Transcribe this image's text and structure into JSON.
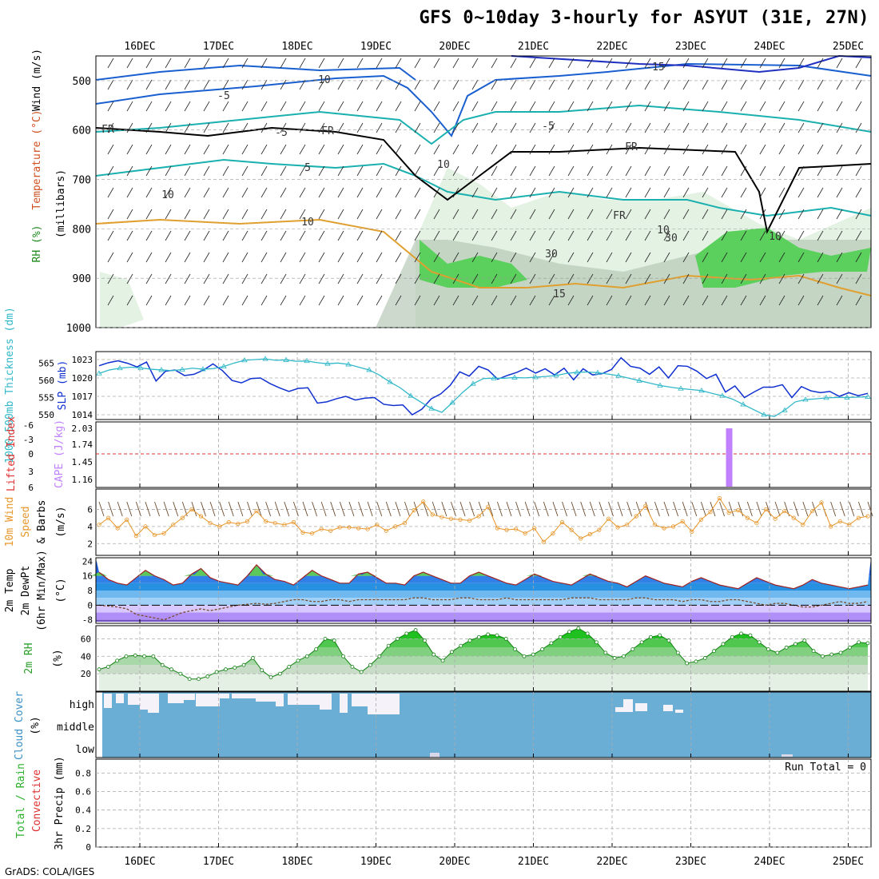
{
  "title": "GFS 0~10day 3-hourly for ASYUT (31E, 27N)",
  "footer": "GrADS: COLA/IGES",
  "run_total": "Run Total = 0",
  "colors": {
    "wind_contour": "#1a5fd0",
    "temp_contour": "#1ab0b0",
    "rh_fill_light": "#e3f2e3",
    "rh_fill_mid": "#b7c9b7",
    "rh_fill_green": "#5cd05c",
    "slp_line": "#1030d0",
    "thickness_line": "#30b8c8",
    "cape_bar": "#c080ff",
    "li_line": "#e03030",
    "wind10_speed": "#e8962a",
    "cloud_fill": "#6aaed6",
    "rh2m_fill": "#39c639"
  },
  "chart_data": [
    {
      "id": "upper_air",
      "type": "heatmap",
      "x_ticks": [
        "16DEC",
        "17DEC",
        "18DEC",
        "19DEC",
        "20DEC",
        "21DEC",
        "22DEC",
        "23DEC",
        "24DEC",
        "25DEC"
      ],
      "ylabel_parts": [
        "RH (%)",
        "Temperature (°C)",
        "Wind (m/s)",
        "(millibars)"
      ],
      "y_ticks": [
        500,
        600,
        700,
        800,
        900,
        1000
      ],
      "ylim": [
        450,
        1000
      ],
      "contour_labels": [
        "-15",
        "-10",
        "-5",
        "-5",
        "-5",
        "5",
        "FR",
        "FR",
        "FR",
        "FR",
        "10",
        "10",
        "10",
        "30",
        "30",
        "10",
        "15",
        "10"
      ]
    },
    {
      "id": "slp_thickness",
      "type": "line",
      "ylabel_left": "1000-500mb Thickness (dm)",
      "ylabel_right": "SLP (mb)",
      "left_ticks": [
        550,
        555,
        560,
        565
      ],
      "right_ticks": [
        1014,
        1017,
        1020,
        1023
      ],
      "series": [
        {
          "name": "SLP",
          "values": [
            1022,
            1022.5,
            1022.8,
            1022.4,
            1021.8,
            1022.6,
            1019.5,
            1021.1,
            1021.3,
            1020.4,
            1020.6,
            1021.3,
            1022.3,
            1021.2,
            1019.6,
            1019.2,
            1019.9,
            1020.0,
            1019.1,
            1018.4,
            1017.8,
            1018.3,
            1018.4,
            1015.9,
            1016.1,
            1016.6,
            1017.0,
            1016.4,
            1016.7,
            1016.8,
            1015.7,
            1015.5,
            1015.6,
            1014.0,
            1014.9,
            1016.6,
            1017.4,
            1018.8,
            1021.0,
            1020.3,
            1021.9,
            1021.3,
            1019.8,
            1020.4,
            1020.9,
            1021.6,
            1020.8,
            1021.5,
            1020.5,
            1021.6,
            1019.7,
            1021.5,
            1020.5,
            1020.7,
            1021.4,
            1023.3,
            1021.9,
            1021.6,
            1020.6,
            1021.8,
            1020.0,
            1022.0,
            1021.9,
            1021.1,
            1019.9,
            1020.6,
            1017.7,
            1018.7,
            1016.8,
            1017.7,
            1018.5,
            1018.5,
            1018.9,
            1016.8,
            1018.6,
            1017.9,
            1017.6,
            1017.8,
            1017.0,
            1017.6,
            1017.1,
            1017.5
          ]
        },
        {
          "name": "Thickness",
          "values": [
            562,
            563,
            563.5,
            563.8,
            563.6,
            563.2,
            563.0,
            562.8,
            563.1,
            563.5,
            563.2,
            563.4,
            564.0,
            565.0,
            565.8,
            566.0,
            566.2,
            565.8,
            565.9,
            565.5,
            565.6,
            565.1,
            564.8,
            565.0,
            564.6,
            563.8,
            563.0,
            561.5,
            559.5,
            557.8,
            555.5,
            553.6,
            551.8,
            550.7,
            553.5,
            556.5,
            559.0,
            560.5,
            560.6,
            560.6,
            560.8,
            560.7,
            560.9,
            561.1,
            561.4,
            562.0,
            562.3,
            562.4,
            562.2,
            561.8,
            561.3,
            560.6,
            559.9,
            559.2,
            558.5,
            558.0,
            557.6,
            557.3,
            557.0,
            556.2,
            555.5,
            554.5,
            553.0,
            551.5,
            550.0,
            549.5,
            551.3,
            553.7,
            554.4,
            554.6,
            554.9,
            555.0,
            555.0,
            555.1,
            555.2
          ]
        }
      ]
    },
    {
      "id": "cape_li",
      "type": "bar",
      "ylabel_left": "Lifted Index",
      "ylabel_right": "CAPE (J/kg)",
      "left_ticks": [
        "-6",
        "-3",
        "0",
        "3",
        "6"
      ],
      "right_ticks": [
        "2.03",
        "1.74",
        "1.45",
        "1.16"
      ],
      "cape_spike_day": "23DEC",
      "cape_spike_value": 2.03
    },
    {
      "id": "wind10m",
      "type": "line",
      "ylabel": [
        "10m Wind",
        "Speed",
        "& Barbs",
        "(m/s)"
      ],
      "y_ticks": [
        2,
        4,
        6
      ],
      "ylim": [
        1,
        8
      ],
      "values": [
        4.2,
        5.0,
        3.8,
        4.8,
        2.9,
        4.0,
        3.0,
        3.2,
        4.2,
        5.0,
        6.0,
        5.2,
        4.4,
        4.0,
        4.5,
        4.3,
        4.6,
        5.8,
        4.6,
        4.4,
        4.2,
        4.5,
        3.3,
        3.2,
        3.7,
        3.5,
        3.9,
        3.9,
        3.8,
        3.7,
        4.2,
        3.5,
        4.0,
        4.4,
        5.9,
        6.9,
        5.4,
        5.1,
        4.9,
        4.8,
        4.7,
        5.2,
        6.3,
        3.8,
        3.6,
        3.7,
        3.2,
        3.8,
        2.2,
        3.2,
        4.5,
        3.6,
        2.6,
        3.1,
        3.6,
        4.9,
        3.9,
        4.2,
        5.2,
        6.4,
        4.2,
        3.8,
        4.0,
        4.6,
        3.4,
        4.8,
        5.7,
        7.3,
        5.6,
        5.9,
        5.0,
        4.4,
        6.0,
        4.9,
        5.8,
        5.0,
        4.2,
        5.8,
        6.8,
        4.0,
        4.6,
        4.2,
        5.0,
        5.2
      ]
    },
    {
      "id": "temp2m",
      "type": "area",
      "ylabel": [
        "2m Temp",
        "2m DewPt",
        "(6hr Min/Max)",
        "(°C)"
      ],
      "y_ticks": [
        "24",
        "16",
        "8",
        "0",
        "-8"
      ],
      "ylim": [
        -9,
        25
      ],
      "temp_values": [
        18,
        14,
        12,
        11,
        15,
        19,
        16,
        14,
        11,
        12,
        17,
        20,
        15,
        13,
        12,
        11,
        16,
        22,
        17,
        14,
        13,
        11,
        15,
        19,
        16,
        14,
        12,
        12,
        17,
        18,
        15,
        12,
        12,
        11,
        16,
        18,
        16,
        14,
        12,
        12,
        16,
        18,
        16,
        14,
        12,
        11,
        14,
        17,
        15,
        13,
        12,
        11,
        14,
        17,
        15,
        13,
        12,
        10,
        13,
        16,
        14,
        12,
        11,
        10,
        13,
        15,
        13,
        11,
        10,
        9,
        12,
        15,
        13,
        11,
        10,
        9,
        11,
        14,
        12,
        11,
        10,
        9,
        10,
        11
      ],
      "dewpt_values": [
        0,
        -0.5,
        -1,
        -2,
        -5,
        -6,
        -7,
        -8,
        -6,
        -4,
        -3,
        -2,
        -3,
        -2,
        -1,
        0,
        0.5,
        1,
        0.5,
        1,
        2,
        3,
        3,
        2,
        2,
        3,
        3,
        2,
        3,
        3,
        3,
        3,
        3,
        3,
        4,
        4,
        3,
        3,
        3,
        4,
        4,
        3,
        3,
        3,
        4,
        3,
        3,
        3,
        3,
        3,
        3,
        4,
        4,
        4,
        3,
        3,
        3,
        3,
        4,
        4,
        3,
        3,
        3,
        2,
        3,
        3,
        2,
        2,
        3,
        3,
        2,
        1,
        0,
        1,
        1,
        0,
        -1,
        -1,
        0,
        1,
        2,
        1,
        1,
        2
      ]
    },
    {
      "id": "rh2m",
      "type": "area",
      "ylabel": [
        "2m RH",
        "(%)"
      ],
      "y_ticks": [
        20,
        40,
        60
      ],
      "ylim": [
        0,
        75
      ],
      "values": [
        25,
        28,
        35,
        40,
        41,
        40,
        40,
        30,
        25,
        20,
        14,
        14,
        17,
        22,
        25,
        27,
        30,
        38,
        24,
        16,
        20,
        28,
        35,
        40,
        48,
        60,
        58,
        40,
        28,
        22,
        30,
        40,
        52,
        60,
        66,
        70,
        58,
        42,
        35,
        45,
        52,
        58,
        62,
        65,
        64,
        60,
        48,
        40,
        42,
        48,
        55,
        62,
        68,
        72,
        66,
        56,
        44,
        38,
        40,
        48,
        56,
        62,
        64,
        58,
        44,
        32,
        34,
        38,
        46,
        54,
        62,
        66,
        64,
        56,
        48,
        44,
        50,
        54,
        58,
        46,
        40,
        42,
        44,
        50,
        56,
        55
      ]
    },
    {
      "id": "cloud_cover",
      "type": "area",
      "ylabel": [
        "Cloud Cover",
        "(%)"
      ],
      "levels": [
        "high",
        "middle",
        "low"
      ]
    },
    {
      "id": "precip",
      "type": "bar",
      "ylabel": [
        "Total / Rain",
        "Convective",
        "3hr Precip (mm)"
      ],
      "y_ticks": [
        "0",
        "0.2",
        "0.4",
        "0.6",
        "0.8"
      ],
      "ylim": [
        0,
        0.95
      ],
      "values": []
    }
  ]
}
